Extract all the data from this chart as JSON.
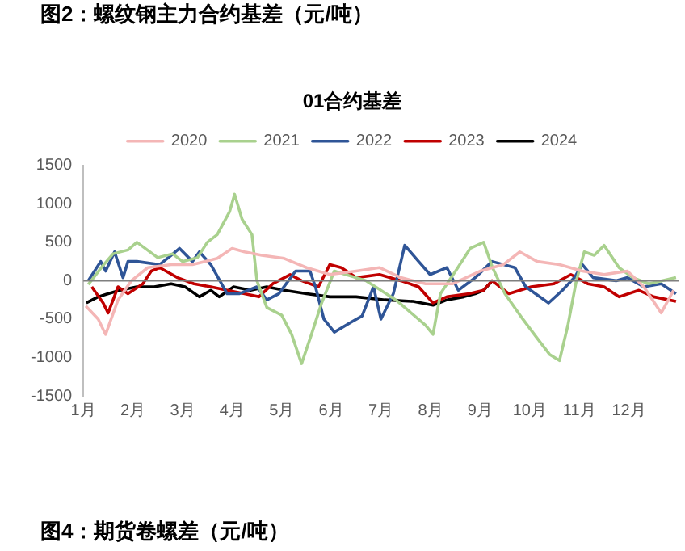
{
  "chart_data": {
    "type": "line",
    "title": "图2：螺纹钢主力合约基差（元/吨）",
    "subtitle": "01合约基差",
    "annotations": [
      "图4：期货卷螺差（元/吨）"
    ],
    "legend": "top",
    "grid": false,
    "marker": "none",
    "xlim": [
      1,
      13
    ],
    "xticks": [
      {
        "value": 1,
        "label": "1月"
      },
      {
        "value": 2,
        "label": "2月"
      },
      {
        "value": 3,
        "label": "3月"
      },
      {
        "value": 4,
        "label": "4月"
      },
      {
        "value": 5,
        "label": "5月"
      },
      {
        "value": 6,
        "label": "6月"
      },
      {
        "value": 7,
        "label": "7月"
      },
      {
        "value": 8,
        "label": "8月"
      },
      {
        "value": 9,
        "label": "9月"
      },
      {
        "value": 10,
        "label": "10月"
      },
      {
        "value": 11,
        "label": "11月"
      },
      {
        "value": 12,
        "label": "12月"
      }
    ],
    "ylim": [
      -1500,
      1500
    ],
    "yticks": [
      -1500,
      -1000,
      -500,
      0,
      500,
      1000,
      1500
    ],
    "ref_lines": [
      {
        "axis": "y",
        "value": 0,
        "color": "#7f7f7f"
      }
    ],
    "series": [
      {
        "name": "2020",
        "color": "#f4b6b6",
        "x": [
          1.05,
          1.3,
          1.45,
          1.7,
          1.97,
          2.3,
          2.77,
          3.2,
          3.7,
          4.0,
          4.25,
          4.6,
          5.05,
          5.5,
          5.97,
          6.5,
          6.97,
          7.4,
          7.9,
          8.45,
          9.0,
          9.47,
          9.8,
          10.15,
          10.6,
          11.06,
          11.5,
          11.97,
          12.3,
          12.65,
          12.9
        ],
        "values": [
          -330,
          -500,
          -700,
          -250,
          0,
          170,
          210,
          210,
          290,
          420,
          375,
          330,
          290,
          170,
          80,
          125,
          170,
          40,
          -40,
          -40,
          125,
          210,
          375,
          250,
          210,
          125,
          80,
          125,
          -80,
          -420,
          -125
        ]
      },
      {
        "name": "2021",
        "color": "#a9d18e",
        "x": [
          1.1,
          1.4,
          1.6,
          1.9,
          2.08,
          2.5,
          2.8,
          3.0,
          3.3,
          3.5,
          3.7,
          3.95,
          4.05,
          4.2,
          4.4,
          4.5,
          4.7,
          5.0,
          5.2,
          5.4,
          5.6,
          5.8,
          6.06,
          6.7,
          7.3,
          7.9,
          8.05,
          8.2,
          8.55,
          8.8,
          9.07,
          9.25,
          9.5,
          9.86,
          10.15,
          10.4,
          10.6,
          10.77,
          10.94,
          11.1,
          11.3,
          11.5,
          11.8,
          12.08,
          12.4,
          12.95
        ],
        "values": [
          -50,
          200,
          350,
          400,
          500,
          300,
          350,
          250,
          300,
          500,
          600,
          900,
          1125,
          800,
          600,
          0,
          -350,
          -450,
          -700,
          -1080,
          -700,
          -300,
          125,
          0,
          -250,
          -580,
          -700,
          -170,
          170,
          420,
          500,
          170,
          -170,
          -500,
          -750,
          -960,
          -1040,
          -580,
          0,
          375,
          330,
          460,
          170,
          40,
          -40,
          40
        ]
      },
      {
        "name": "2022",
        "color": "#2f5597",
        "x": [
          1.1,
          1.35,
          1.45,
          1.63,
          1.8,
          1.9,
          2.08,
          2.54,
          2.77,
          2.94,
          3.2,
          3.34,
          3.57,
          3.9,
          4.14,
          4.5,
          4.7,
          4.94,
          5.28,
          5.57,
          5.68,
          5.85,
          6.06,
          6.4,
          6.62,
          6.85,
          7.0,
          7.25,
          7.48,
          7.76,
          7.99,
          8.33,
          8.56,
          8.9,
          9.24,
          9.7,
          9.92,
          10.38,
          10.66,
          10.9,
          11.06,
          11.28,
          11.74,
          11.97,
          12.3,
          12.65,
          12.95
        ],
        "values": [
          0,
          250,
          125,
          375,
          40,
          250,
          250,
          210,
          330,
          420,
          250,
          375,
          210,
          -170,
          -170,
          -80,
          -250,
          -170,
          125,
          125,
          -80,
          -500,
          -670,
          -540,
          -460,
          -80,
          -500,
          -170,
          460,
          250,
          80,
          170,
          -125,
          40,
          250,
          170,
          -80,
          -290,
          -125,
          40,
          210,
          40,
          0,
          40,
          -80,
          -40,
          -170
        ]
      },
      {
        "name": "2023",
        "color": "#c00000",
        "x": [
          1.17,
          1.4,
          1.5,
          1.7,
          1.9,
          2.2,
          2.37,
          2.54,
          2.9,
          3.23,
          3.57,
          3.9,
          4.25,
          4.54,
          4.82,
          5.17,
          5.4,
          5.74,
          5.97,
          6.2,
          6.5,
          6.97,
          7.4,
          7.76,
          8.05,
          8.33,
          8.78,
          9.07,
          9.24,
          9.58,
          10.03,
          10.49,
          10.83,
          11.17,
          11.5,
          11.8,
          12.2,
          12.5,
          12.95
        ],
        "values": [
          -80,
          -290,
          -420,
          -80,
          -170,
          -40,
          125,
          170,
          40,
          -40,
          -80,
          -125,
          -170,
          -210,
          -40,
          80,
          0,
          -80,
          210,
          170,
          40,
          80,
          0,
          -80,
          -290,
          -210,
          -170,
          -125,
          0,
          -170,
          -80,
          -40,
          80,
          -40,
          -80,
          -210,
          -125,
          -210,
          -270
        ]
      },
      {
        "name": "2024",
        "color": "#000000",
        "x": [
          1.06,
          1.3,
          1.5,
          1.74,
          2.08,
          2.43,
          2.77,
          3.05,
          3.34,
          3.57,
          3.74,
          4.03,
          4.37,
          4.7,
          5.05,
          5.5,
          5.97,
          6.5,
          7.08,
          7.65,
          8.05,
          8.33,
          8.67,
          8.9,
          9.07,
          9.22
        ],
        "values": [
          -290,
          -210,
          -170,
          -125,
          -80,
          -80,
          -40,
          -80,
          -210,
          -125,
          -210,
          -80,
          -125,
          -80,
          -125,
          -170,
          -210,
          -210,
          -250,
          -270,
          -320,
          -250,
          -210,
          -170,
          -125,
          -20
        ]
      }
    ]
  }
}
